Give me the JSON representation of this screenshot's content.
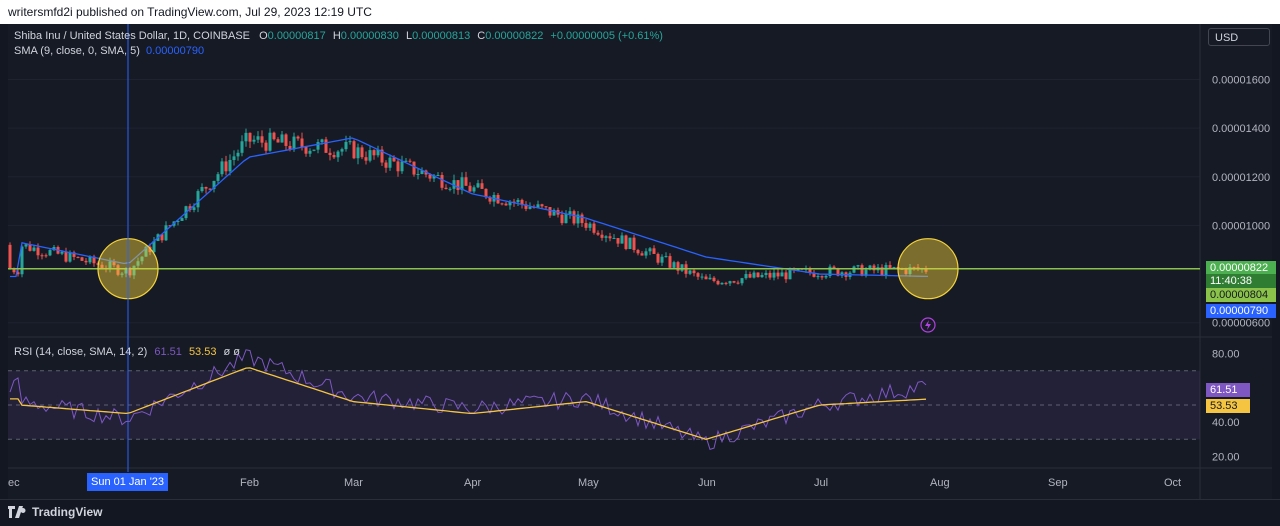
{
  "header": {
    "published": "writersmfd2i published on TradingView.com, Jul 29, 2023 12:19 UTC"
  },
  "legend": {
    "symbol": "Shiba Inu / United States Dollar, 1D, COINBASE",
    "o_label": "O",
    "o": "0.00000817",
    "h_label": "H",
    "h": "0.00000830",
    "l_label": "L",
    "l": "0.00000813",
    "c_label": "C",
    "c": "0.00000822",
    "change": "+0.00000005 (+0.61%)",
    "sma_label": "SMA (9, close, 0, SMA, 5)",
    "sma_value": "0.00000790",
    "rsi_label": "RSI (14, close, SMA, 14, 2)",
    "rsi_value": "61.51",
    "rsi_ma_value": "53.53",
    "rsi_extra": "ø ø"
  },
  "currency_button": "USD",
  "price_tags": {
    "close": "0.00000822",
    "countdown": "11:40:38",
    "level": "0.00000804",
    "sma": "0.00000790"
  },
  "crosshair_date": "Sun 01 Jan '23",
  "footer": {
    "brand": "TradingView"
  },
  "colors": {
    "up": "#26a69a",
    "down": "#ef5350",
    "sma": "#2962ff",
    "rsi": "#7e57c2",
    "rsi_ma": "#f5c542",
    "hline": "#8bc34a",
    "circle": "#f5d33a"
  },
  "chart_data": [
    {
      "type": "line",
      "title": "Shiba Inu / United States Dollar, 1D, COINBASE",
      "y_ticks": [
        "0.00001600",
        "0.00001400",
        "0.00001200",
        "0.00001000",
        "0.00000600"
      ],
      "x_ticks": [
        "ec",
        "Feb",
        "Mar",
        "Apr",
        "May",
        "Jun",
        "Jul",
        "Aug",
        "Sep",
        "Oct"
      ],
      "horizontal_line": 8.22e-06,
      "highlighted_points": [
        "Sun 01 Jan '23",
        "end of Jul"
      ],
      "series": [
        {
          "name": "SMA (9, close, 0, SMA, 5)",
          "x": [
            "Dec",
            "Jan",
            "Feb",
            "Mar",
            "Apr",
            "May",
            "Jun",
            "Jul",
            "end Jul"
          ],
          "values": [
            9.3e-06,
            8.4e-06,
            1.28e-05,
            1.36e-05,
            1.13e-05,
            1.03e-05,
            8.7e-06,
            8e-06,
            7.9e-06
          ]
        },
        {
          "name": "close",
          "x": [
            "Dec",
            "Jan",
            "Feb",
            "Mar",
            "Apr",
            "May",
            "Jun",
            "Jul",
            "end Jul"
          ],
          "values": [
            9.2e-06,
            8.1e-06,
            1.35e-05,
            1.31e-05,
            1.15e-05,
            1.01e-05,
            7.7e-06,
            8.1e-06,
            8.2e-06
          ]
        }
      ]
    },
    {
      "type": "line",
      "title": "RSI (14, close, SMA, 14, 2)",
      "y_ticks": [
        "80.00",
        "40.00",
        "20.00"
      ],
      "ylim": [
        15,
        85
      ],
      "bands": [
        70,
        30
      ],
      "series": [
        {
          "name": "RSI",
          "x": [
            "Dec",
            "Jan",
            "Feb",
            "Mar",
            "Apr",
            "May",
            "Jun",
            "Jul",
            "end Jul"
          ],
          "values": [
            52,
            42,
            78,
            55,
            48,
            54,
            28,
            50,
            61.51
          ]
        },
        {
          "name": "SMA",
          "x": [
            "Dec",
            "Jan",
            "Feb",
            "Mar",
            "Apr",
            "May",
            "Jun",
            "Jul",
            "end Jul"
          ],
          "values": [
            50,
            45,
            72,
            52,
            45,
            52,
            30,
            50,
            53.53
          ]
        }
      ]
    }
  ]
}
